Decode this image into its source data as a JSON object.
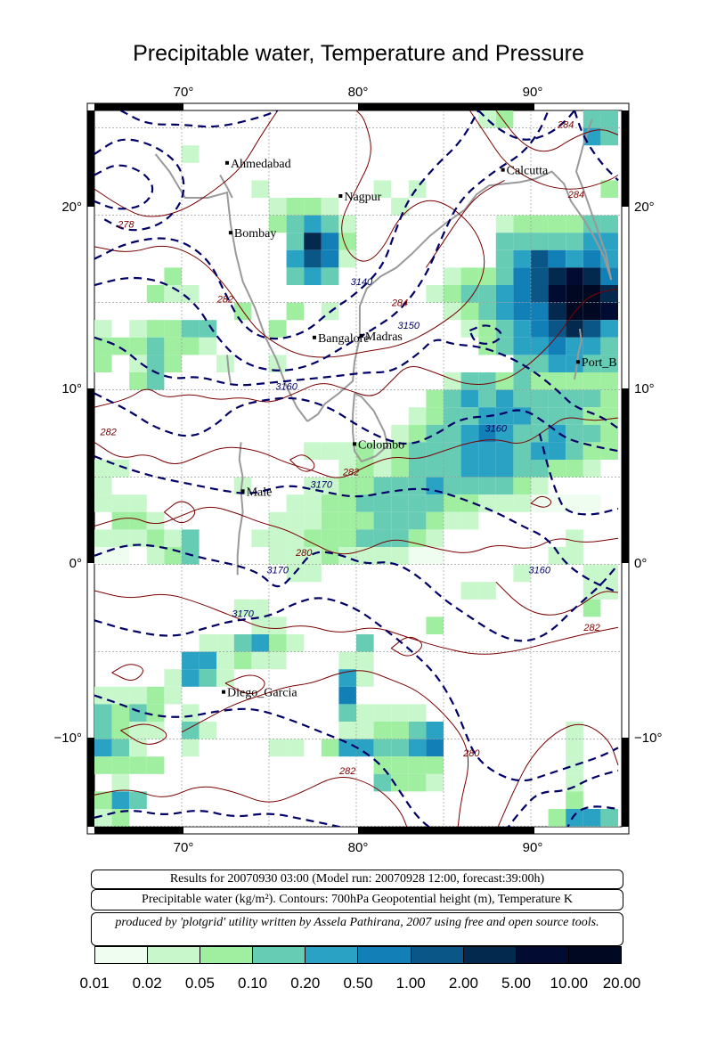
{
  "title": "Precipitable water, Temperature and Pressure",
  "map": {
    "lon_range": [
      65,
      95
    ],
    "lat_range": [
      -15,
      26
    ],
    "lon_ticks": [
      "70°",
      "80°",
      "90°"
    ],
    "lat_ticks": [
      "20°",
      "10°",
      "0°",
      "−10°"
    ],
    "cities": [
      {
        "name": "Ahmedabad",
        "lon": 72.6,
        "lat": 23.0
      },
      {
        "name": "Nagpur",
        "lon": 79.1,
        "lat": 21.1
      },
      {
        "name": "Calcutta",
        "lon": 88.4,
        "lat": 22.6
      },
      {
        "name": "Bombay",
        "lon": 72.8,
        "lat": 19.0
      },
      {
        "name": "Madras",
        "lon": 80.3,
        "lat": 13.1
      },
      {
        "name": "Bangalore",
        "lon": 77.6,
        "lat": 13.0
      },
      {
        "name": "Port_B",
        "lon": 92.7,
        "lat": 11.6
      },
      {
        "name": "Colombo",
        "lon": 79.9,
        "lat": 6.9
      },
      {
        "name": "Male",
        "lon": 73.5,
        "lat": 4.2
      },
      {
        "name": "Diego_Garcia",
        "lon": 72.4,
        "lat": -7.3
      }
    ],
    "temp_labels": [
      {
        "text": "284",
        "lon": 92.0,
        "lat": 25.0
      },
      {
        "text": "284",
        "lon": 92.6,
        "lat": 21.0
      },
      {
        "text": "278",
        "lon": 66.8,
        "lat": 19.3
      },
      {
        "text": "282",
        "lon": 72.5,
        "lat": 15.0
      },
      {
        "text": "284",
        "lon": 82.5,
        "lat": 14.8
      },
      {
        "text": "282",
        "lon": 65.8,
        "lat": 7.4
      },
      {
        "text": "282",
        "lon": 79.7,
        "lat": 5.1
      },
      {
        "text": "280",
        "lon": 77.0,
        "lat": 0.5
      },
      {
        "text": "282",
        "lon": 93.5,
        "lat": -3.8
      },
      {
        "text": "280",
        "lon": 86.6,
        "lat": -11.0
      },
      {
        "text": "282",
        "lon": 79.5,
        "lat": -12.0
      }
    ],
    "height_labels": [
      {
        "text": "3140",
        "lon": 80.3,
        "lat": 16.0
      },
      {
        "text": "3150",
        "lon": 83.0,
        "lat": 13.5
      },
      {
        "text": "3160",
        "lon": 76.0,
        "lat": 10.0
      },
      {
        "text": "3160",
        "lon": 88.0,
        "lat": 7.6
      },
      {
        "text": "3170",
        "lon": 78.0,
        "lat": 4.4
      },
      {
        "text": "3170",
        "lon": 75.5,
        "lat": -0.5
      },
      {
        "text": "3170",
        "lon": 73.5,
        "lat": -3.0
      },
      {
        "text": "3160",
        "lon": 90.5,
        "lat": -0.5
      }
    ]
  },
  "captions": {
    "results": "Results for 20070930 03:00 (Model run: 20070928 12:00, forecast:39:00h)",
    "description": "Precipitable water (kg/m²).  Contours: 700hPa Geopotential height (m), Temperature K",
    "credit": "produced by 'plotgrid' utility written by Assela Pathirana, 2007 using free and open source tools."
  },
  "colorbar": {
    "ticks": [
      "0.01",
      "0.02",
      "0.05",
      "0.10",
      "0.20",
      "0.50",
      "1.00",
      "2.00",
      "5.00",
      "10.00",
      "20.00"
    ],
    "colors": [
      "#effdf0",
      "#c8f7cc",
      "#a0efa0",
      "#66ccb4",
      "#2aa2c4",
      "#1280b6",
      "#0a5686",
      "#03294f",
      "#020c33",
      "#010821"
    ]
  }
}
